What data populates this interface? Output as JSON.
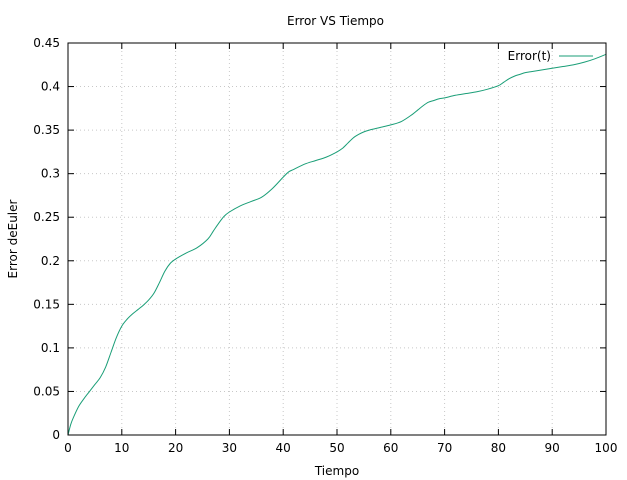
{
  "chart_data": {
    "type": "line",
    "title": "Error VS Tiempo",
    "xlabel": "Tiempo",
    "ylabel": "Error deEuler",
    "xlim": [
      0,
      100
    ],
    "ylim": [
      0,
      0.45
    ],
    "xticks": [
      0,
      10,
      20,
      30,
      40,
      50,
      60,
      70,
      80,
      90,
      100
    ],
    "xtick_labels": [
      "0",
      "10",
      "20",
      "30",
      "40",
      "50",
      "60",
      "70",
      "80",
      "90",
      "100"
    ],
    "yticks": [
      0,
      0.05,
      0.1,
      0.15,
      0.2,
      0.25,
      0.3,
      0.35,
      0.4,
      0.45
    ],
    "ytick_labels": [
      "0",
      "0.05",
      "0.1",
      "0.15",
      "0.2",
      "0.25",
      "0.3",
      "0.35",
      "0.4",
      "0.45"
    ],
    "grid": true,
    "legend_position": "top-right",
    "series": [
      {
        "name": "Error(t)",
        "color": "#1a9e77",
        "x": [
          0,
          0.5,
          1,
          2,
          3,
          4,
          5,
          6,
          7,
          8,
          9,
          10,
          11,
          12,
          13,
          14,
          15,
          16,
          17,
          18,
          19,
          20,
          22,
          24,
          26,
          27,
          28,
          29,
          30,
          32,
          34,
          36,
          38,
          40,
          41,
          42,
          44,
          46,
          48,
          50,
          51,
          52,
          53,
          54,
          55,
          56,
          58,
          60,
          62,
          64,
          65,
          66,
          67,
          68,
          69,
          70,
          72,
          74,
          76,
          78,
          80,
          81,
          82,
          83,
          84,
          85,
          86,
          88,
          90,
          92,
          94,
          96,
          98,
          100
        ],
        "y": [
          0.0,
          0.012,
          0.02,
          0.033,
          0.042,
          0.05,
          0.058,
          0.066,
          0.078,
          0.095,
          0.112,
          0.125,
          0.133,
          0.139,
          0.144,
          0.149,
          0.155,
          0.163,
          0.175,
          0.188,
          0.197,
          0.202,
          0.209,
          0.215,
          0.225,
          0.234,
          0.243,
          0.251,
          0.256,
          0.263,
          0.268,
          0.273,
          0.283,
          0.296,
          0.302,
          0.305,
          0.311,
          0.315,
          0.319,
          0.325,
          0.329,
          0.335,
          0.341,
          0.345,
          0.348,
          0.35,
          0.353,
          0.356,
          0.36,
          0.368,
          0.373,
          0.378,
          0.382,
          0.384,
          0.386,
          0.387,
          0.39,
          0.392,
          0.394,
          0.397,
          0.401,
          0.405,
          0.409,
          0.412,
          0.414,
          0.416,
          0.417,
          0.419,
          0.421,
          0.423,
          0.425,
          0.428,
          0.432,
          0.437
        ]
      }
    ]
  }
}
